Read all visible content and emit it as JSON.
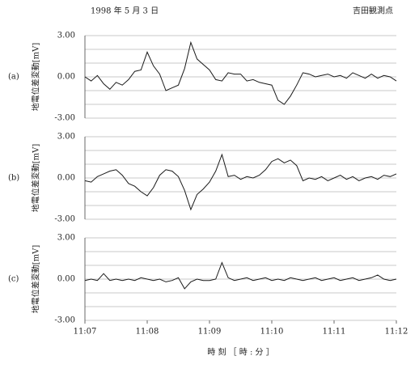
{
  "header": {
    "date": "1998 年 5 月 3 日",
    "station": "吉田観測点"
  },
  "chart_data": [
    {
      "type": "line",
      "panel_label": "(a)",
      "ylabel": "地電位差変動[mV]",
      "color": "#1a1a1a",
      "x": [
        667,
        667.1,
        667.2,
        667.3,
        667.4,
        667.5,
        667.6,
        667.7,
        667.8,
        667.9,
        668,
        668.1,
        668.2,
        668.3,
        668.4,
        668.5,
        668.6,
        668.7,
        668.8,
        668.9,
        669,
        669.1,
        669.2,
        669.3,
        669.4,
        669.5,
        669.6,
        669.7,
        669.8,
        669.9,
        670,
        670.1,
        670.2,
        670.3,
        670.4,
        670.5,
        670.6,
        670.7,
        670.8,
        670.9,
        671,
        671.1,
        671.2,
        671.3,
        671.4,
        671.5,
        671.6,
        671.7,
        671.8,
        671.9,
        672
      ],
      "values": [
        0.0,
        -0.3,
        0.1,
        -0.5,
        -0.9,
        -0.4,
        -0.6,
        -0.2,
        0.4,
        0.5,
        1.8,
        0.8,
        0.2,
        -1.0,
        -0.8,
        -0.6,
        0.6,
        2.5,
        1.3,
        0.9,
        0.5,
        -0.2,
        -0.3,
        0.3,
        0.2,
        0.2,
        -0.3,
        -0.2,
        -0.4,
        -0.5,
        -0.6,
        -1.7,
        -2.0,
        -1.4,
        -0.6,
        0.3,
        0.2,
        0.0,
        0.1,
        0.2,
        0.0,
        0.1,
        -0.1,
        0.3,
        0.1,
        -0.1,
        0.2,
        -0.1,
        0.1,
        0.0,
        -0.3
      ],
      "xlim": [
        667,
        672
      ],
      "ylim": [
        -3,
        3
      ],
      "yticks": [
        {
          "value": 3,
          "label": "3.00"
        },
        {
          "value": 0,
          "label": "0.00"
        },
        {
          "value": -3,
          "label": "-3.00"
        }
      ],
      "minor_yticks": [
        -2,
        -1,
        1,
        2
      ],
      "grid": true
    },
    {
      "type": "line",
      "panel_label": "(b)",
      "ylabel": "地電位差変動[mV]",
      "color": "#1a1a1a",
      "x": [
        667,
        667.1,
        667.2,
        667.3,
        667.4,
        667.5,
        667.6,
        667.7,
        667.8,
        667.9,
        668,
        668.1,
        668.2,
        668.3,
        668.4,
        668.5,
        668.6,
        668.7,
        668.8,
        668.9,
        669,
        669.1,
        669.2,
        669.3,
        669.4,
        669.5,
        669.6,
        669.7,
        669.8,
        669.9,
        670,
        670.1,
        670.2,
        670.3,
        670.4,
        670.5,
        670.6,
        670.7,
        670.8,
        670.9,
        671,
        671.1,
        671.2,
        671.3,
        671.4,
        671.5,
        671.6,
        671.7,
        671.8,
        671.9,
        672
      ],
      "values": [
        -0.2,
        -0.3,
        0.1,
        0.3,
        0.5,
        0.6,
        0.2,
        -0.4,
        -0.6,
        -1.0,
        -1.3,
        -0.7,
        0.2,
        0.6,
        0.5,
        0.1,
        -0.9,
        -2.3,
        -1.2,
        -0.8,
        -0.3,
        0.5,
        1.7,
        0.1,
        0.2,
        -0.1,
        0.1,
        0.0,
        0.2,
        0.6,
        1.2,
        1.4,
        1.1,
        1.3,
        0.9,
        -0.2,
        0.0,
        -0.1,
        0.1,
        -0.2,
        0.0,
        0.2,
        -0.1,
        0.1,
        -0.2,
        0.0,
        0.1,
        -0.1,
        0.2,
        0.1,
        0.3
      ],
      "xlim": [
        667,
        672
      ],
      "ylim": [
        -3,
        3
      ],
      "yticks": [
        {
          "value": 3,
          "label": "3.00"
        },
        {
          "value": 0,
          "label": "0.00"
        },
        {
          "value": -3,
          "label": "-3.00"
        }
      ],
      "minor_yticks": [
        -2,
        -1,
        1,
        2
      ],
      "grid": true
    },
    {
      "type": "line",
      "panel_label": "(c)",
      "ylabel": "地電位差変動[mV]",
      "color": "#1a1a1a",
      "x": [
        667,
        667.1,
        667.2,
        667.3,
        667.4,
        667.5,
        667.6,
        667.7,
        667.8,
        667.9,
        668,
        668.1,
        668.2,
        668.3,
        668.4,
        668.5,
        668.6,
        668.7,
        668.8,
        668.9,
        669,
        669.1,
        669.2,
        669.3,
        669.4,
        669.5,
        669.6,
        669.7,
        669.8,
        669.9,
        670,
        670.1,
        670.2,
        670.3,
        670.4,
        670.5,
        670.6,
        670.7,
        670.8,
        670.9,
        671,
        671.1,
        671.2,
        671.3,
        671.4,
        671.5,
        671.6,
        671.7,
        671.8,
        671.9,
        672
      ],
      "values": [
        -0.1,
        0.0,
        -0.1,
        0.4,
        -0.1,
        0.0,
        -0.1,
        0.0,
        -0.1,
        0.1,
        0.0,
        -0.1,
        0.0,
        -0.2,
        -0.1,
        0.1,
        -0.7,
        -0.2,
        0.0,
        -0.1,
        -0.1,
        0.0,
        1.2,
        0.1,
        -0.1,
        0.0,
        0.1,
        -0.1,
        0.0,
        0.1,
        -0.1,
        0.0,
        -0.1,
        0.1,
        0.0,
        -0.1,
        0.0,
        0.1,
        -0.1,
        0.0,
        0.1,
        -0.1,
        0.0,
        0.1,
        -0.1,
        0.0,
        0.1,
        0.3,
        0.0,
        -0.1,
        0.0
      ],
      "xlim": [
        667,
        672
      ],
      "ylim": [
        -3,
        3
      ],
      "yticks": [
        {
          "value": 3,
          "label": "3.00"
        },
        {
          "value": 0,
          "label": "0.00"
        },
        {
          "value": -3,
          "label": "-3.00"
        }
      ],
      "minor_yticks": [
        -2,
        -1,
        1,
        2
      ],
      "grid": true,
      "xticks": [
        {
          "value": 667,
          "label": "11:07"
        },
        {
          "value": 668,
          "label": "11:08"
        },
        {
          "value": 669,
          "label": "11:09"
        },
        {
          "value": 670,
          "label": "11:10"
        },
        {
          "value": 671,
          "label": "11:11"
        },
        {
          "value": 672,
          "label": "11:12"
        }
      ],
      "xlabel": "時 刻 ［ 時 : 分 ］"
    }
  ]
}
